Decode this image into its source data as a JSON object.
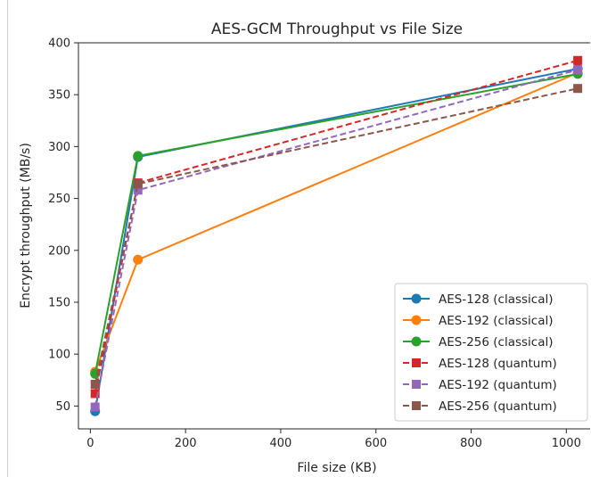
{
  "chart_data": {
    "type": "line",
    "title": "AES-GCM Throughput vs File Size",
    "xlabel": "File size (KB)",
    "ylabel": "Encrypt throughput (MB/s)",
    "xlim": [
      -25,
      1050
    ],
    "ylim": [
      28,
      400
    ],
    "xticks": [
      0,
      200,
      400,
      600,
      800,
      1000
    ],
    "yticks": [
      50,
      100,
      150,
      200,
      250,
      300,
      350,
      400
    ],
    "grid": false,
    "legend_position": "lower-right",
    "x": [
      10,
      100,
      1024
    ],
    "series": [
      {
        "name": "AES-128 (classical)",
        "values": [
          45,
          290,
          375
        ],
        "color": "#1f77b4",
        "linestyle": "solid",
        "marker": "circle"
      },
      {
        "name": "AES-192 (classical)",
        "values": [
          83,
          191,
          371
        ],
        "color": "#ff7f0e",
        "linestyle": "solid",
        "marker": "circle"
      },
      {
        "name": "AES-256 (classical)",
        "values": [
          81,
          291,
          370
        ],
        "color": "#2ca02c",
        "linestyle": "solid",
        "marker": "circle"
      },
      {
        "name": "AES-128 (quantum)",
        "values": [
          62,
          265,
          383
        ],
        "color": "#d62728",
        "linestyle": "dashed",
        "marker": "square"
      },
      {
        "name": "AES-192 (quantum)",
        "values": [
          49,
          258,
          374
        ],
        "color": "#9467bd",
        "linestyle": "dashed",
        "marker": "square"
      },
      {
        "name": "AES-256 (quantum)",
        "values": [
          71,
          264,
          356
        ],
        "color": "#8c564b",
        "linestyle": "dashed",
        "marker": "square"
      }
    ]
  }
}
